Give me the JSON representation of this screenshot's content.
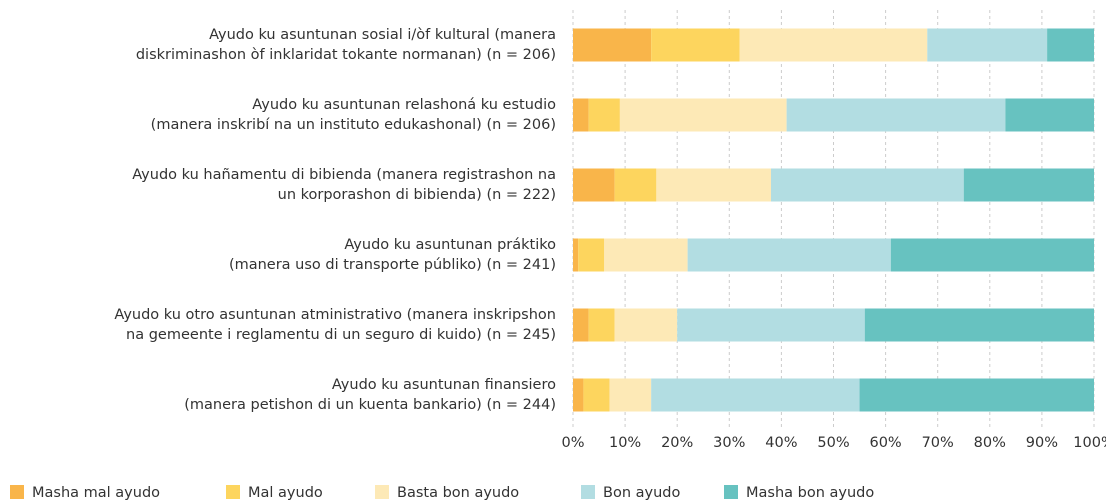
{
  "chart_data": {
    "type": "stacked_bar_horizontal",
    "categories": [
      [
        "Ayudo ku asuntunan sosial i/òf kultural (manera",
        "diskriminashon òf inklaridat tokante normanan) (n = 206)"
      ],
      [
        "Ayudo ku asuntunan relashoná ku estudio",
        "(manera inskribí na un instituto edukashonal) (n = 206)"
      ],
      [
        "Ayudo ku hañamentu di bibienda (manera registrashon na",
        "un korporashon di bibienda) (n = 222)"
      ],
      [
        "Ayudo ku asuntunan práktiko",
        "(manera uso di transporte públiko) (n = 241)"
      ],
      [
        "Ayudo ku otro asuntunan atministrativo (manera inskripshon",
        "na gemeente i reglamentu di un seguro di kuido) (n = 245)"
      ],
      [
        "Ayudo ku asuntunan finansiero",
        "(manera petishon di un kuenta bankario) (n = 244)"
      ]
    ],
    "series": [
      {
        "name": "Masha mal ayudo",
        "color": "#f9b54a",
        "values": [
          15,
          3,
          8,
          1,
          3,
          2
        ]
      },
      {
        "name": "Mal ayudo",
        "color": "#fdd55e",
        "values": [
          17,
          6,
          8,
          5,
          5,
          5
        ]
      },
      {
        "name": "Basta bon ayudo",
        "color": "#fde9b6",
        "values": [
          36,
          32,
          22,
          16,
          12,
          8
        ]
      },
      {
        "name": "Bon ayudo",
        "color": "#b2dde2",
        "values": [
          23,
          42,
          37,
          39,
          36,
          40
        ]
      },
      {
        "name": "Masha bon ayudo",
        "color": "#67c2c0",
        "values": [
          9,
          17,
          25,
          39,
          44,
          45
        ]
      }
    ],
    "xlim": [
      0,
      100
    ],
    "xticks": [
      {
        "value": 0,
        "label": "0%"
      },
      {
        "value": 10,
        "label": "10%"
      },
      {
        "value": 20,
        "label": "20%"
      },
      {
        "value": 30,
        "label": "30%"
      },
      {
        "value": 40,
        "label": "40%"
      },
      {
        "value": 50,
        "label": "50%"
      },
      {
        "value": 60,
        "label": "60%"
      },
      {
        "value": 70,
        "label": "70%"
      },
      {
        "value": 80,
        "label": "80%"
      },
      {
        "value": 90,
        "label": "90%"
      },
      {
        "value": 100,
        "label": "100%"
      }
    ],
    "grid": true
  }
}
